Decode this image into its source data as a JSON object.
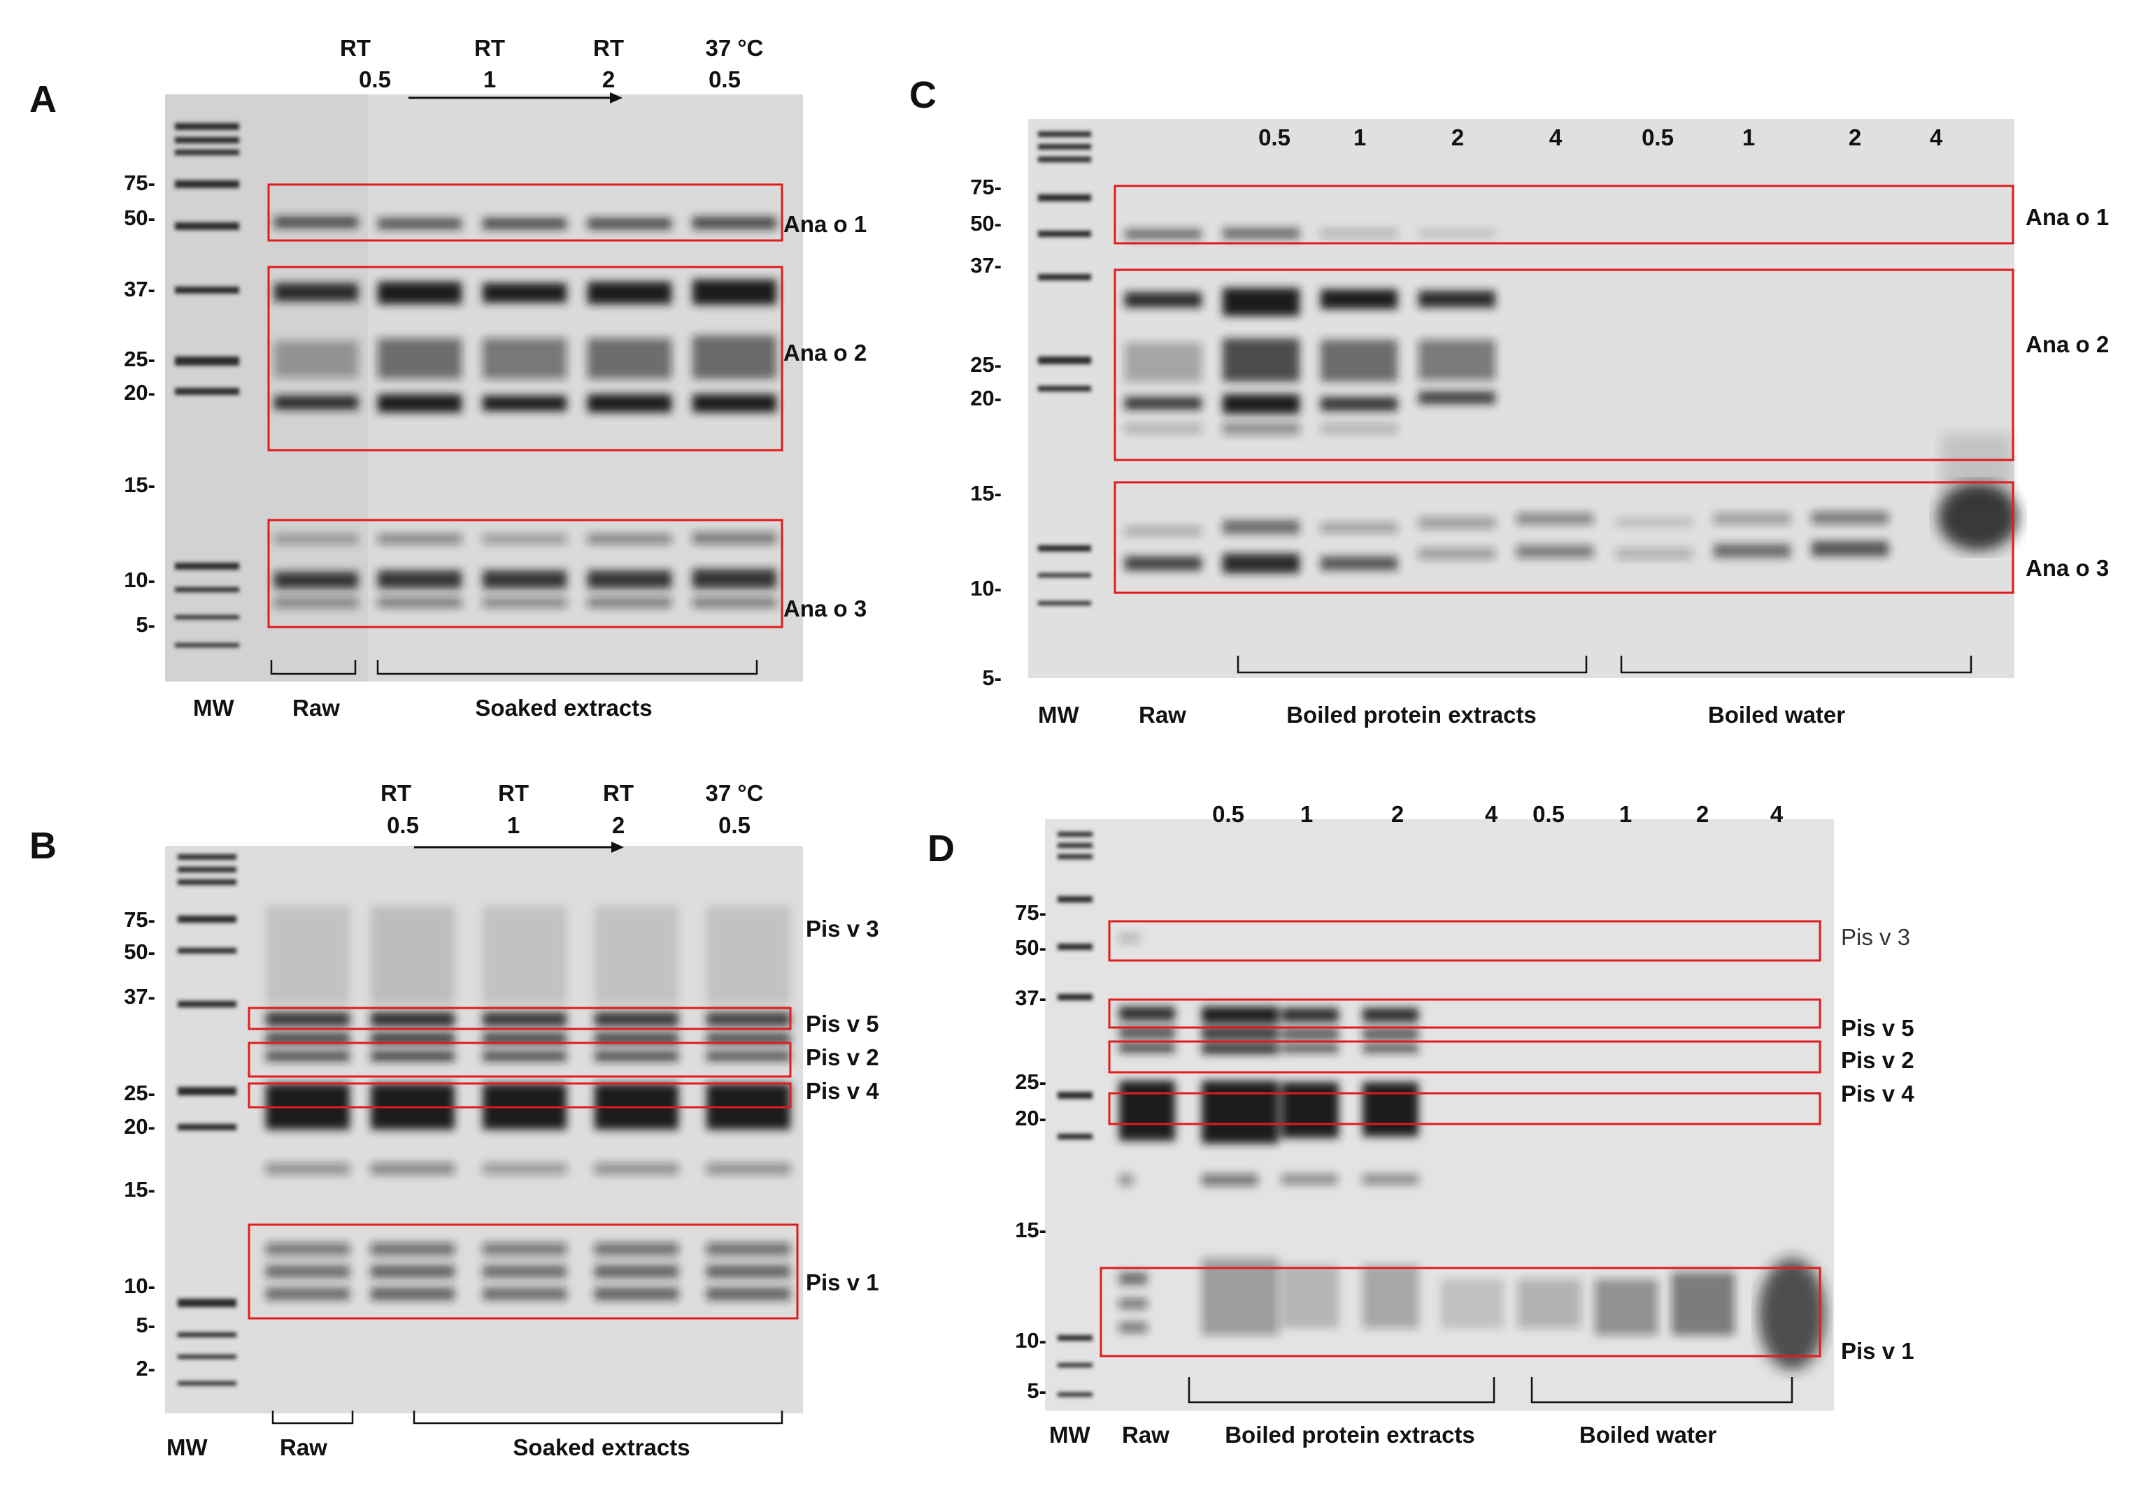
{
  "panels": [
    {
      "letter": "A",
      "lane_headers": [
        [
          "RT",
          "0.5"
        ],
        [
          "RT",
          "1"
        ],
        [
          "RT",
          "2"
        ],
        [
          "37 °C",
          "0.5"
        ]
      ],
      "mw_markers": [
        "75-",
        "50-",
        "37-",
        "25-",
        "20-",
        "15-",
        "10-",
        "5-"
      ],
      "bands": [
        "Ana o 1",
        "Ana  o 2",
        "Ana o 3"
      ],
      "bottom": [
        "MW",
        "Raw",
        "Soaked extracts"
      ]
    },
    {
      "letter": "B",
      "lane_headers": [
        [
          "RT",
          "0.5"
        ],
        [
          "RT",
          "1"
        ],
        [
          "RT",
          "2"
        ],
        [
          "37 °C",
          "0.5"
        ]
      ],
      "mw_markers": [
        "75-",
        "50-",
        "37-",
        "25-",
        "20-",
        "15-",
        "10-",
        "5-",
        "2-"
      ],
      "bands": [
        "Pis v 3",
        "Pis v 5",
        "Pis v 2",
        "Pis v 4",
        "Pis v 1"
      ],
      "bottom": [
        "MW",
        "Raw",
        "Soaked extracts"
      ]
    },
    {
      "letter": "C",
      "lane_headers": [
        "0.5",
        "1",
        "2",
        "4",
        "0.5",
        "1",
        "2",
        "4"
      ],
      "mw_markers": [
        "75-",
        "50-",
        "37-",
        "25-",
        "20-",
        "15-",
        "10-",
        "5-"
      ],
      "bands": [
        "Ana o 1",
        "Ana  o 2",
        "Ana o 3"
      ],
      "bottom": [
        "MW",
        "Raw",
        "Boiled protein extracts",
        "Boiled water"
      ]
    },
    {
      "letter": "D",
      "lane_headers": [
        "0.5",
        "1",
        "2",
        "4",
        "0.5",
        "1",
        "2",
        "4"
      ],
      "mw_markers": [
        "75-",
        "50-",
        "37-",
        "25-",
        "20-",
        "15-",
        "10-",
        "5-"
      ],
      "bands": [
        "Pis v 3",
        "Pis v 5",
        "Pis v 2",
        "Pis v 4",
        "Pis v 1"
      ],
      "bottom": [
        "MW",
        "Raw",
        "Boiled protein extracts",
        "Boiled water"
      ]
    }
  ],
  "colors": {
    "box": "#e11b1b",
    "gel": "#dcdcdc",
    "band": "#1a1a1a"
  }
}
